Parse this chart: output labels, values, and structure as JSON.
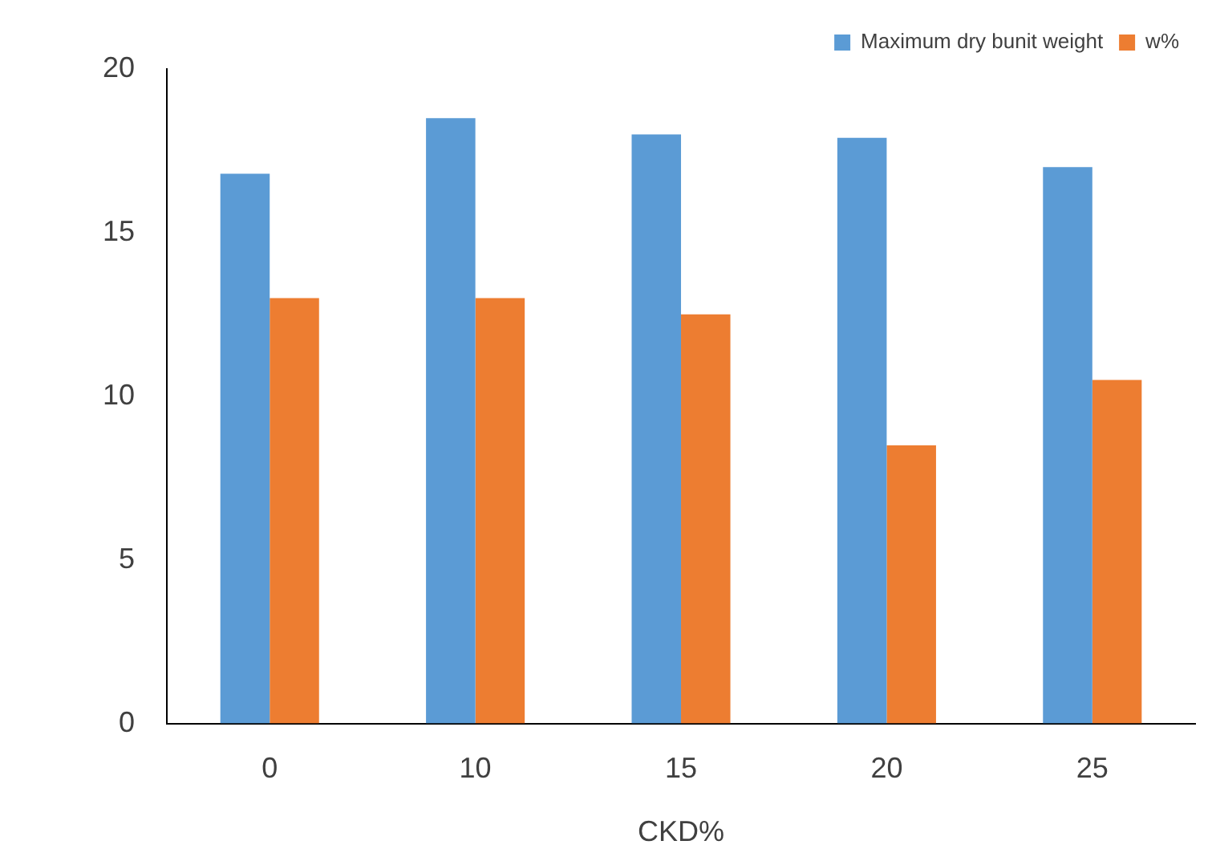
{
  "chart_data": {
    "type": "bar",
    "xlabel": "CKD%",
    "categories": [
      "0",
      "10",
      "15",
      "20",
      "25"
    ],
    "series": [
      {
        "name": "Maximum dry bunit weight",
        "color": "#5b9bd5",
        "values": [
          16.8,
          18.5,
          18.0,
          17.9,
          17.0
        ]
      },
      {
        "name": "w%",
        "color": "#ed7d31",
        "values": [
          13.0,
          13.0,
          12.5,
          8.5,
          10.5
        ]
      }
    ],
    "ylim": [
      0,
      20
    ],
    "yticks": [
      0,
      5,
      10,
      15,
      20
    ],
    "grid": false,
    "legend": "top right"
  }
}
